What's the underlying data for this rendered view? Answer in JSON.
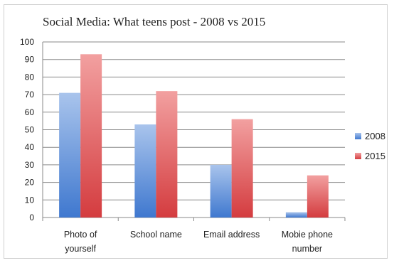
{
  "chart_data": {
    "type": "bar",
    "title": "Social Media: What teens post - 2008 vs 2015",
    "categories": [
      [
        "Photo of",
        "yourself"
      ],
      [
        "School name"
      ],
      [
        "Email address"
      ],
      [
        "Mobie phone",
        "number"
      ]
    ],
    "series": [
      {
        "name": "2008",
        "values": [
          71,
          53,
          30,
          3
        ],
        "color": "#5b8fd6"
      },
      {
        "name": "2015",
        "values": [
          93,
          72,
          56,
          24
        ],
        "color": "#e0595c"
      }
    ],
    "ylim": [
      0,
      100
    ],
    "yticks": [
      0,
      10,
      20,
      30,
      40,
      50,
      60,
      70,
      80,
      90,
      100
    ],
    "grid": true,
    "legend": "right"
  }
}
